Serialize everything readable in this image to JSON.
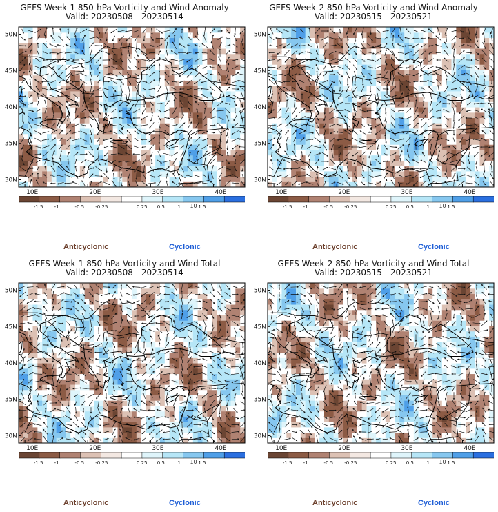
{
  "colors": {
    "anticyclonic": "#6b3f2c",
    "cyclonic": "#1f5fd6",
    "scale": [
      "#6b4533",
      "#8c5b45",
      "#b08272",
      "#dcc1b4",
      "#f3e8e2",
      "#ffffff",
      "#dff5fb",
      "#b6e6f7",
      "#86c7ef",
      "#4f9fe8",
      "#2a6fe0"
    ]
  },
  "colorbar": {
    "labels": [
      "-1.5",
      "-1",
      "-0.5",
      "-0.25",
      "0.25",
      "0.5",
      "1",
      "1.5"
    ],
    "center": "10"
  },
  "legend": {
    "anticyclonic": "Anticyclonic",
    "cyclonic": "Cyclonic"
  },
  "chart_data": [
    {
      "type": "heatmap",
      "title": "GEFS Week-1 850-hPa Vorticity and Wind Anomaly",
      "subtitle": "Valid: 20230508 - 20230514",
      "x_ticks": [
        "10E",
        "20E",
        "30E",
        "40E"
      ],
      "y_ticks": [
        "50N",
        "45N",
        "40N",
        "35N",
        "30N"
      ],
      "xlim": [
        9,
        45
      ],
      "ylim": [
        29,
        51
      ],
      "colorbar_ticks": [
        -1.5,
        -1,
        -0.5,
        -0.25,
        0.25,
        0.5,
        1,
        1.5
      ]
    },
    {
      "type": "heatmap",
      "title": "GEFS Week-2 850-hPa Vorticity and Wind Anomaly",
      "subtitle": "Valid: 20230515 - 20230521",
      "x_ticks": [
        "10E",
        "20E",
        "30E",
        "40E"
      ],
      "y_ticks": [
        "50N",
        "45N",
        "40N",
        "35N",
        "30N"
      ],
      "xlim": [
        9,
        45
      ],
      "ylim": [
        29,
        51
      ],
      "colorbar_ticks": [
        -1.5,
        -1,
        -0.5,
        -0.25,
        0.25,
        0.5,
        1,
        1.5
      ]
    },
    {
      "type": "heatmap",
      "title": "GEFS Week-1 850-hPa Vorticity and Wind Total",
      "subtitle": "Valid: 20230508 - 20230514",
      "x_ticks": [
        "10E",
        "20E",
        "30E",
        "40E"
      ],
      "y_ticks": [
        "50N",
        "45N",
        "40N",
        "35N",
        "30N"
      ],
      "xlim": [
        9,
        45
      ],
      "ylim": [
        29,
        51
      ],
      "colorbar_ticks": [
        -1.5,
        -1,
        -0.5,
        -0.25,
        0.25,
        0.5,
        1,
        1.5
      ]
    },
    {
      "type": "heatmap",
      "title": "GEFS Week-2 850-hPa Vorticity and Wind Total",
      "subtitle": "Valid: 20230515 - 20230521",
      "x_ticks": [
        "10E",
        "20E",
        "30E",
        "40E"
      ],
      "y_ticks": [
        "50N",
        "45N",
        "40N",
        "35N",
        "30N"
      ],
      "xlim": [
        9,
        45
      ],
      "ylim": [
        29,
        51
      ],
      "colorbar_ticks": [
        -1.5,
        -1,
        -0.5,
        -0.25,
        0.25,
        0.5,
        1,
        1.5
      ]
    }
  ]
}
